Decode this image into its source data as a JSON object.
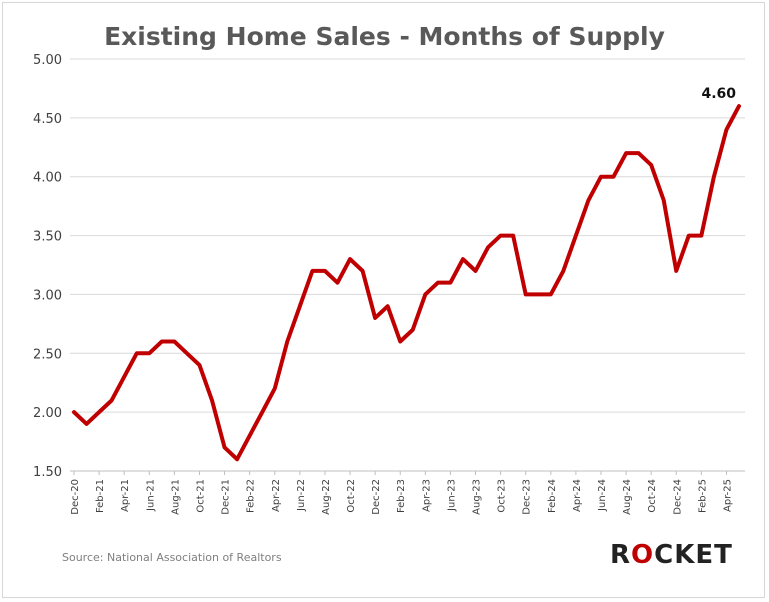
{
  "chart_data": {
    "type": "line",
    "title": "Existing Home Sales - Months of Supply",
    "xlabel": "",
    "ylabel": "",
    "ylim": [
      1.5,
      5.0
    ],
    "yticks": [
      "5.00",
      "4.50",
      "4.00",
      "3.50",
      "3.00",
      "2.50",
      "2.00",
      "1.50"
    ],
    "grid": true,
    "x": [
      "Dec-20",
      "Jan-21",
      "Feb-21",
      "Mar-21",
      "Apr-21",
      "May-21",
      "Jun-21",
      "Jul-21",
      "Aug-21",
      "Sep-21",
      "Oct-21",
      "Nov-21",
      "Dec-21",
      "Jan-22",
      "Feb-22",
      "Mar-22",
      "Apr-22",
      "May-22",
      "Jun-22",
      "Jul-22",
      "Aug-22",
      "Sep-22",
      "Oct-22",
      "Nov-22",
      "Dec-22",
      "Jan-23",
      "Feb-23",
      "Mar-23",
      "Apr-23",
      "May-23",
      "Jun-23",
      "Jul-23",
      "Aug-23",
      "Sep-23",
      "Oct-23",
      "Nov-23",
      "Dec-23",
      "Jan-24",
      "Feb-24",
      "Mar-24",
      "Apr-24",
      "May-24",
      "Jun-24",
      "Jul-24",
      "Aug-24",
      "Sep-24",
      "Oct-24",
      "Nov-24",
      "Dec-24",
      "Jan-25",
      "Feb-25",
      "Mar-25",
      "Apr-25",
      "May-25"
    ],
    "xtick_labels": [
      "Dec-20",
      "Feb-21",
      "Apr-21",
      "Jun-21",
      "Aug-21",
      "Oct-21",
      "Dec-21",
      "Feb-22",
      "Apr-22",
      "Jun-22",
      "Aug-22",
      "Oct-22",
      "Dec-22",
      "Feb-23",
      "Apr-23",
      "Jun-23",
      "Aug-23",
      "Oct-23",
      "Dec-23",
      "Feb-24",
      "Apr-24",
      "Jun-24",
      "Aug-24",
      "Oct-24",
      "Dec-24",
      "Feb-25",
      "Apr-25"
    ],
    "series": [
      {
        "color": "#c00000",
        "values": [
          2.0,
          1.9,
          2.0,
          2.1,
          2.3,
          2.5,
          2.5,
          2.6,
          2.6,
          2.5,
          2.4,
          2.1,
          1.7,
          1.6,
          1.8,
          2.0,
          2.2,
          2.6,
          2.9,
          3.2,
          3.2,
          3.1,
          3.3,
          3.2,
          2.8,
          2.9,
          2.6,
          2.7,
          3.0,
          3.1,
          3.1,
          3.3,
          3.2,
          3.4,
          3.5,
          3.5,
          3.0,
          3.0,
          3.0,
          3.2,
          3.5,
          3.8,
          4.0,
          4.0,
          4.2,
          4.2,
          4.1,
          3.8,
          3.2,
          3.5,
          3.5,
          4.0,
          4.4,
          4.6
        ]
      }
    ],
    "annotation": {
      "text": "4.60"
    }
  },
  "source": "Source: National Association of Realtors",
  "logo": {
    "text": "ROCKET",
    "accent_color": "#c00000"
  }
}
